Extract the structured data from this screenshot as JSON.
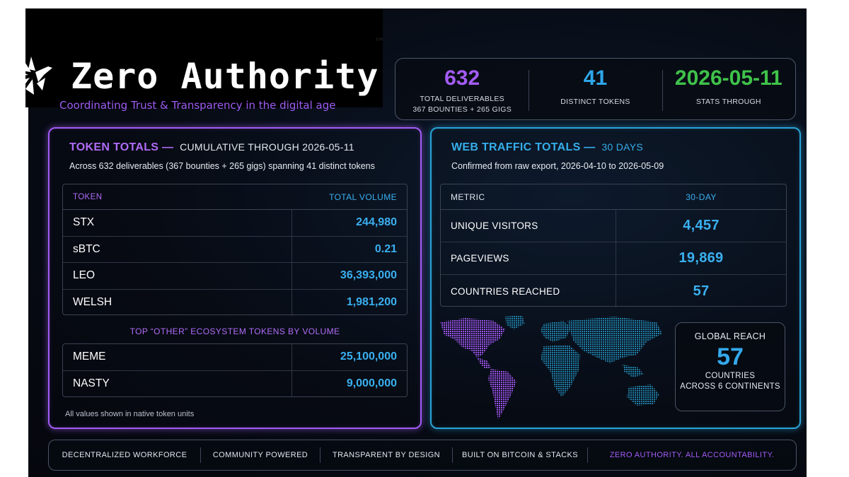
{
  "brand": {
    "name": "Zero Authority",
    "tm": "™",
    "tagline": "Coordinating Trust & Transparency in the digital age"
  },
  "stats": [
    {
      "value": "632",
      "label_line1": "TOTAL DELIVERABLES",
      "label_line2": "367 BOUNTIES + 265 GIGS",
      "color": "#a35cf5"
    },
    {
      "value": "41",
      "label_line1": "DISTINCT TOKENS",
      "label_line2": "",
      "color": "#2ea6ea"
    },
    {
      "value": "2026-05-11",
      "label_line1": "STATS THROUGH",
      "label_line2": "",
      "color": "#3fc24a"
    }
  ],
  "token_panel": {
    "title": "TOKEN TOTALS —",
    "subtitle": "CUMULATIVE THROUGH 2026-05-11",
    "description": "Across 632 deliverables (367 bounties + 265 gigs) spanning 41 distinct tokens",
    "col_token": "TOKEN",
    "col_volume": "TOTAL VOLUME",
    "rows": [
      {
        "token": "STX",
        "volume": "244,980"
      },
      {
        "token": "sBTC",
        "volume": "0.21"
      },
      {
        "token": "LEO",
        "volume": "36,393,000"
      },
      {
        "token": "WELSH",
        "volume": "1,981,200"
      }
    ],
    "other_title": "TOP “OTHER” ECOSYSTEM TOKENS BY VOLUME",
    "other_rows": [
      {
        "token": "MEME",
        "volume": "25,100,000"
      },
      {
        "token": "NASTY",
        "volume": "9,000,000"
      }
    ],
    "footnote": "All values shown in native token units"
  },
  "traffic_panel": {
    "title": "WEB TRAFFIC TOTALS —",
    "subtitle": "30 DAYS",
    "description": "Confirmed from raw export, 2026-04-10 to 2026-05-09",
    "col_metric": "METRIC",
    "col_value": "30-DAY",
    "rows": [
      {
        "metric": "UNIQUE VISITORS",
        "value": "4,457"
      },
      {
        "metric": "PAGEVIEWS",
        "value": "19,869"
      },
      {
        "metric": "COUNTRIES REACHED",
        "value": "57"
      }
    ],
    "reach": {
      "title": "GLOBAL REACH",
      "value": "57",
      "line1": "COUNTRIES",
      "line2": "ACROSS 6 CONTINENTS"
    }
  },
  "footer": {
    "items": [
      "DECENTRALIZED WORKFORCE",
      "COMMUNITY POWERED",
      "TRANSPARENT BY DESIGN",
      "BUILT ON BITCOIN & STACKS",
      "ZERO AUTHORITY. ALL ACCOUNTABILITY."
    ]
  },
  "colors": {
    "purple": "#a35cf5",
    "cyan": "#2aa3d8",
    "value_blue": "#3ab0f0",
    "green": "#3fc24a"
  },
  "icons": [
    "zero-authority-bird-logo",
    "world-map"
  ]
}
